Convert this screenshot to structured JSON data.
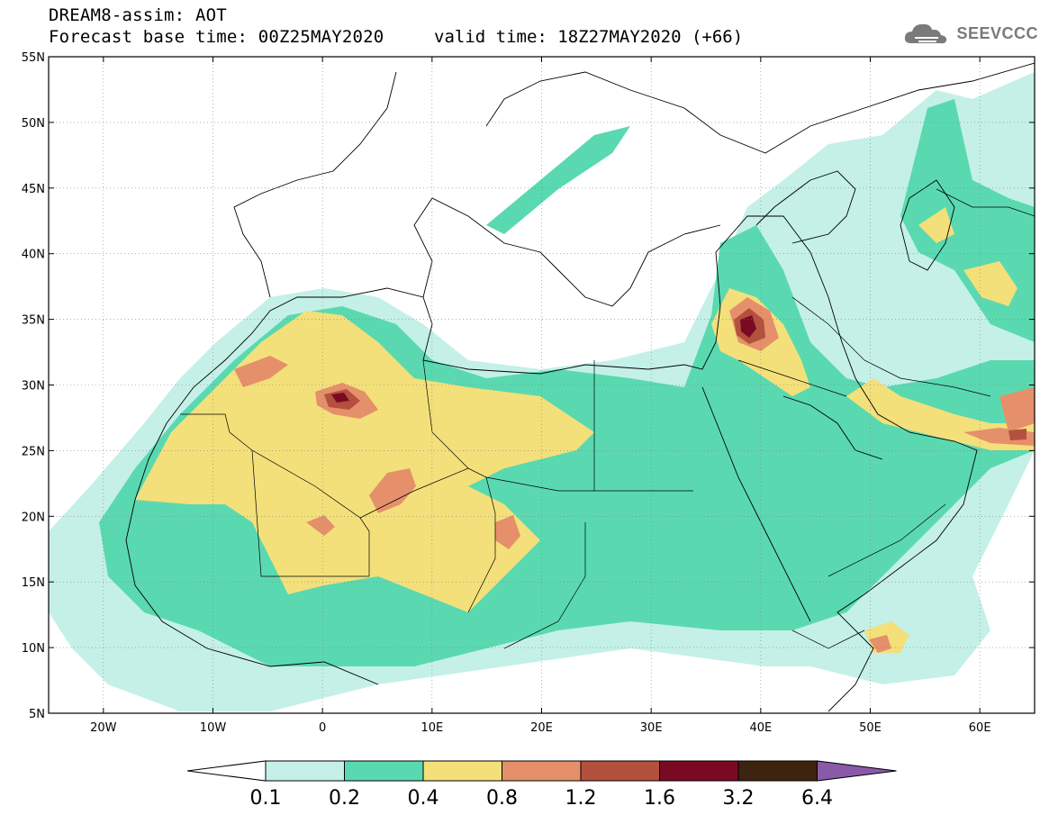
{
  "header": {
    "line1": "DREAM8-assim: AOT",
    "line2": "Forecast base time: 00Z25MAY2020",
    "valid": "valid time: 18Z27MAY2020 (+66)"
  },
  "logo": {
    "text": "SEEVCCC",
    "icon": "cloud-icon"
  },
  "map": {
    "lon_range": [
      -25,
      65
    ],
    "lat_range": [
      5,
      55
    ],
    "lat_ticks": [
      "55N",
      "50N",
      "45N",
      "40N",
      "35N",
      "30N",
      "25N",
      "20N",
      "15N",
      "10N",
      "5N"
    ],
    "lon_ticks": [
      "20W",
      "10W",
      "0",
      "10E",
      "20E",
      "30E",
      "40E",
      "50E",
      "60E"
    ],
    "colors": {
      "ocean": "#ffffff",
      "coast": "#000000"
    }
  },
  "colorbar": {
    "labels": [
      "0.1",
      "0.2",
      "0.4",
      "0.8",
      "1.2",
      "1.6",
      "3.2",
      "6.4"
    ],
    "colors": [
      "#c4f0e8",
      "#5ad9b0",
      "#f3e07a",
      "#e5906a",
      "#b4503e",
      "#7a0a24",
      "#3c2410",
      "#8a5aa8"
    ]
  }
}
